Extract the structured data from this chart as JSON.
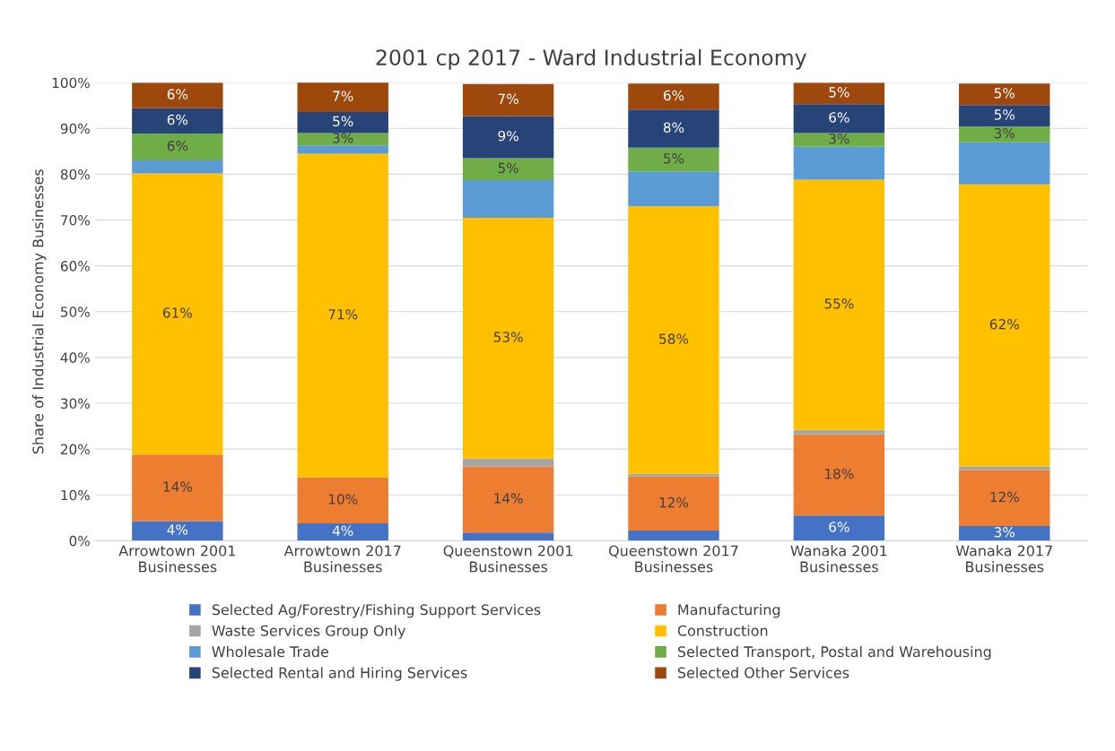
{
  "chart_data": {
    "type": "bar",
    "stacked": true,
    "title": "2001 cp 2017 - Ward Industrial Economy",
    "ylabel": "Share of Industrial Economy Businesses",
    "categories": [
      "Arrowtown 2001\nBusinesses",
      "Arrowtown 2017\nBusinesses",
      "Queenstown 2001\nBusinesses",
      "Queenstown 2017\nBusinesses",
      "Wanaka 2001\nBusinesses",
      "Wanaka 2017\nBusinesses"
    ],
    "ylim": [
      0,
      100
    ],
    "yticks": [
      {
        "value": 0,
        "label": "0%"
      },
      {
        "value": 10,
        "label": "10%"
      },
      {
        "value": 20,
        "label": "20%"
      },
      {
        "value": 30,
        "label": "30%"
      },
      {
        "value": 40,
        "label": "40%"
      },
      {
        "value": 50,
        "label": "50%"
      },
      {
        "value": 60,
        "label": "60%"
      },
      {
        "value": 70,
        "label": "70%"
      },
      {
        "value": 80,
        "label": "80%"
      },
      {
        "value": 90,
        "label": "90%"
      },
      {
        "value": 100,
        "label": "100%"
      }
    ],
    "grid": "y",
    "legend": "bottom",
    "series": [
      {
        "name": "Selected Ag/Forestry/Fishing Support Services",
        "color": "#4472c4",
        "values": [
          4.3,
          3.8,
          1.8,
          2.2,
          5.5,
          3.2
        ],
        "value_labels": [
          "4%",
          "4%",
          null,
          null,
          "6%",
          "3%"
        ]
      },
      {
        "name": "Manufacturing",
        "color": "#ed7d31",
        "values": [
          14.5,
          10.0,
          14.4,
          11.8,
          17.7,
          12.2
        ],
        "value_labels": [
          "14%",
          "10%",
          "14%",
          "12%",
          "18%",
          "12%"
        ]
      },
      {
        "name": "Waste Services Group Only",
        "color": "#a5a5a5",
        "values": [
          0,
          0,
          1.7,
          0.6,
          1.0,
          0.8
        ],
        "value_labels": [
          null,
          null,
          null,
          null,
          null,
          null
        ]
      },
      {
        "name": "Construction",
        "color": "#ffc000",
        "values": [
          61.4,
          70.7,
          52.6,
          58.4,
          54.6,
          61.6
        ],
        "value_labels": [
          "61%",
          "71%",
          "53%",
          "58%",
          "55%",
          "62%"
        ]
      },
      {
        "name": "Wholesale Trade",
        "color": "#5b9bd5",
        "values": [
          2.8,
          1.8,
          8.2,
          7.6,
          7.2,
          9.2
        ],
        "value_labels": [
          null,
          null,
          null,
          null,
          null,
          null
        ]
      },
      {
        "name": "Selected Transport, Postal and Warehousing",
        "color": "#70ad47",
        "values": [
          5.9,
          2.7,
          4.8,
          5.2,
          3.0,
          3.4
        ],
        "value_labels": [
          "6%",
          "3%",
          "5%",
          "5%",
          "3%",
          "3%"
        ]
      },
      {
        "name": "Selected Rental and Hiring Services",
        "color": "#264478",
        "values": [
          5.5,
          4.6,
          9.2,
          8.3,
          6.3,
          4.7
        ],
        "value_labels": [
          "6%",
          "5%",
          "9%",
          "8%",
          "6%",
          "5%"
        ]
      },
      {
        "name": "Selected Other Services",
        "color": "#9e480e",
        "values": [
          5.6,
          6.5,
          7.0,
          5.7,
          4.7,
          4.7
        ],
        "value_labels": [
          "6%",
          "7%",
          "7%",
          "6%",
          "5%",
          "5%"
        ]
      }
    ]
  }
}
